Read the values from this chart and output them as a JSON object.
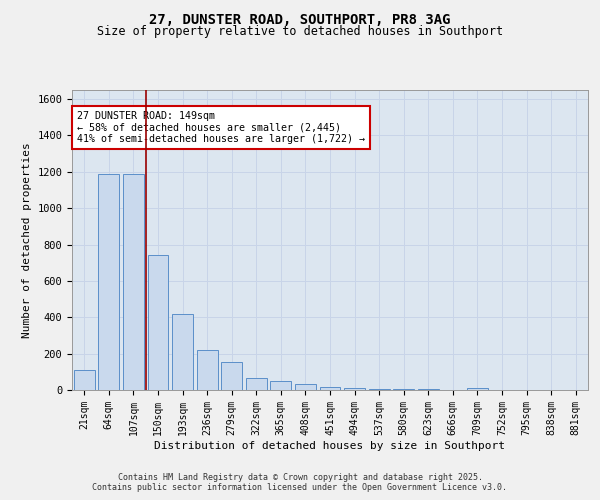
{
  "title1": "27, DUNSTER ROAD, SOUTHPORT, PR8 3AG",
  "title2": "Size of property relative to detached houses in Southport",
  "xlabel": "Distribution of detached houses by size in Southport",
  "ylabel": "Number of detached properties",
  "bar_labels": [
    "21sqm",
    "64sqm",
    "107sqm",
    "150sqm",
    "193sqm",
    "236sqm",
    "279sqm",
    "322sqm",
    "365sqm",
    "408sqm",
    "451sqm",
    "494sqm",
    "537sqm",
    "580sqm",
    "623sqm",
    "666sqm",
    "709sqm",
    "752sqm",
    "795sqm",
    "838sqm",
    "881sqm"
  ],
  "bar_values": [
    110,
    1190,
    1190,
    740,
    420,
    220,
    155,
    65,
    50,
    35,
    15,
    10,
    7,
    5,
    3,
    2,
    12,
    0,
    0,
    0,
    0
  ],
  "bar_color": "#c9d9ed",
  "bar_edge_color": "#5b8fc9",
  "grid_color": "#c8d4e8",
  "background_color": "#dce6f0",
  "fig_background": "#f0f0f0",
  "vline_x": 2.5,
  "vline_color": "#990000",
  "annotation_text": "27 DUNSTER ROAD: 149sqm\n← 58% of detached houses are smaller (2,445)\n41% of semi-detached houses are larger (1,722) →",
  "annotation_box_color": "#ffffff",
  "annotation_box_edge": "#cc0000",
  "ylim": [
    0,
    1650
  ],
  "yticks": [
    0,
    200,
    400,
    600,
    800,
    1000,
    1200,
    1400,
    1600
  ],
  "footer1": "Contains HM Land Registry data © Crown copyright and database right 2025.",
  "footer2": "Contains public sector information licensed under the Open Government Licence v3.0."
}
